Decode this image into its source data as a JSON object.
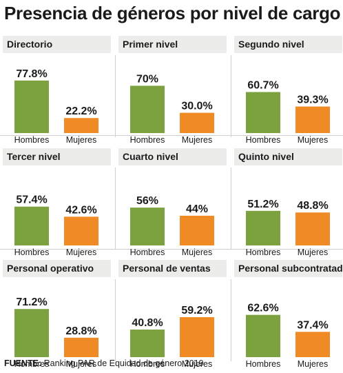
{
  "title": "Presencia de géneros por nivel de cargo",
  "source": {
    "label": "FUENTE:",
    "text": "Ranking PAR de Equidad de género 2019"
  },
  "colors": {
    "hombres": "#7ba23f",
    "mujeres": "#f08a24",
    "header_bg": "#ececea"
  },
  "chart_data": [
    {
      "type": "bar",
      "title": "Directorio",
      "categories": [
        "Hombres",
        "Mujeres"
      ],
      "values": [
        77.8,
        22.2
      ],
      "labels": [
        "77.8%",
        "22.2%"
      ],
      "ylim": [
        0,
        100
      ]
    },
    {
      "type": "bar",
      "title": "Primer nivel",
      "categories": [
        "Hombres",
        "Mujeres"
      ],
      "values": [
        70,
        30.0
      ],
      "labels": [
        "70%",
        "30.0%"
      ],
      "ylim": [
        0,
        100
      ]
    },
    {
      "type": "bar",
      "title": "Segundo nivel",
      "categories": [
        "Hombres",
        "Mujeres"
      ],
      "values": [
        60.7,
        39.3
      ],
      "labels": [
        "60.7%",
        "39.3%"
      ],
      "ylim": [
        0,
        100
      ]
    },
    {
      "type": "bar",
      "title": "Tercer nivel",
      "categories": [
        "Hombres",
        "Mujeres"
      ],
      "values": [
        57.4,
        42.6
      ],
      "labels": [
        "57.4%",
        "42.6%"
      ],
      "ylim": [
        0,
        100
      ]
    },
    {
      "type": "bar",
      "title": "Cuarto nivel",
      "categories": [
        "Hombres",
        "Mujeres"
      ],
      "values": [
        56,
        44
      ],
      "labels": [
        "56%",
        "44%"
      ],
      "ylim": [
        0,
        100
      ]
    },
    {
      "type": "bar",
      "title": "Quinto nivel",
      "categories": [
        "Hombres",
        "Mujeres"
      ],
      "values": [
        51.2,
        48.8
      ],
      "labels": [
        "51.2%",
        "48.8%"
      ],
      "ylim": [
        0,
        100
      ]
    },
    {
      "type": "bar",
      "title": "Personal operativo",
      "categories": [
        "Hombres",
        "Mujeres"
      ],
      "values": [
        71.2,
        28.8
      ],
      "labels": [
        "71.2%",
        "28.8%"
      ],
      "ylim": [
        0,
        100
      ]
    },
    {
      "type": "bar",
      "title": "Personal de ventas",
      "categories": [
        "Hombres",
        "Mujeres"
      ],
      "values": [
        40.8,
        59.2
      ],
      "labels": [
        "40.8%",
        "59.2%"
      ],
      "ylim": [
        0,
        100
      ]
    },
    {
      "type": "bar",
      "title": "Personal subcontratado",
      "categories": [
        "Hombres",
        "Mujeres"
      ],
      "values": [
        62.6,
        37.4
      ],
      "labels": [
        "62.6%",
        "37.4%"
      ],
      "ylim": [
        0,
        100
      ]
    }
  ]
}
